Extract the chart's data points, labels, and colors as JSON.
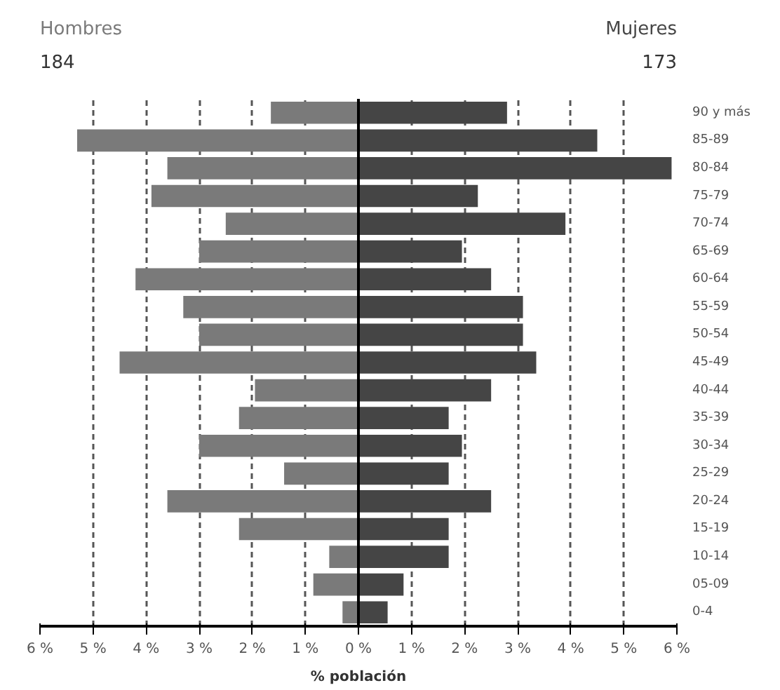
{
  "chart_data": {
    "type": "bar",
    "orientation": "horizontal",
    "xlabel": "% población",
    "categories": [
      "90 y más",
      "85-89",
      "80-84",
      "75-79",
      "70-74",
      "65-69",
      "60-64",
      "55-59",
      "50-54",
      "45-49",
      "40-44",
      "35-39",
      "30-34",
      "25-29",
      "20-24",
      "15-19",
      "10-14",
      "05-09",
      "0-4"
    ],
    "series": [
      {
        "name": "Hombres",
        "color": "#7a7a7a",
        "values": [
          -1.65,
          -5.3,
          -3.6,
          -3.9,
          -2.5,
          -3.0,
          -4.2,
          -3.3,
          -3.0,
          -4.5,
          -1.95,
          -2.25,
          -3.0,
          -1.4,
          -3.6,
          -2.25,
          -0.55,
          -0.85,
          -0.3
        ]
      },
      {
        "name": "Mujeres",
        "color": "#454545",
        "values": [
          2.8,
          4.5,
          5.9,
          2.25,
          3.9,
          1.95,
          2.5,
          3.1,
          3.1,
          3.35,
          2.5,
          1.7,
          1.95,
          1.7,
          2.5,
          1.7,
          1.7,
          0.85,
          0.55
        ]
      }
    ],
    "annotations": [
      "184",
      "173"
    ],
    "xlim": [
      -6,
      6
    ],
    "xticks": [
      {
        "value": -6,
        "label": "6 %"
      },
      {
        "value": -5,
        "label": "5 %"
      },
      {
        "value": -4,
        "label": "4 %"
      },
      {
        "value": -3,
        "label": "3 %"
      },
      {
        "value": -2,
        "label": "2 %"
      },
      {
        "value": -1,
        "label": "1 %"
      },
      {
        "value": 0,
        "label": "0 %"
      },
      {
        "value": 1,
        "label": "1 %"
      },
      {
        "value": 2,
        "label": "2 %"
      },
      {
        "value": 3,
        "label": "3 %"
      },
      {
        "value": 4,
        "label": "4 %"
      },
      {
        "value": 5,
        "label": "5 %"
      },
      {
        "value": 6,
        "label": "6 %"
      }
    ],
    "grid": "x",
    "stacked": true,
    "line_style": "dashed",
    "ref_lines": [
      {
        "axis": "x",
        "value": 0,
        "color": "#000000"
      }
    ]
  }
}
